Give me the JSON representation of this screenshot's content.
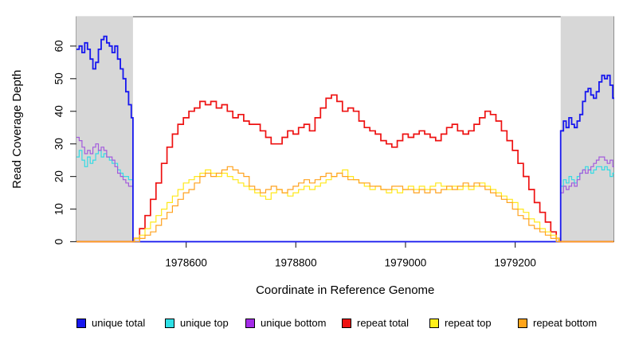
{
  "chart_data": {
    "type": "line",
    "title": "",
    "xlabel": "Coordinate in Reference Genome",
    "ylabel": "Read Coverage Depth",
    "xlim": [
      1978400,
      1979380
    ],
    "ylim": [
      0,
      69
    ],
    "grid": false,
    "legend_position": "bottom",
    "background": "#ffffff",
    "box_color": "#444444",
    "tick_color": "#333333",
    "x_ticks": {
      "values": [
        1978600,
        1978800,
        1979000,
        1979200
      ],
      "labels": [
        "1978600",
        "1978800",
        "1979000",
        "1979200"
      ]
    },
    "y_ticks": {
      "values": [
        0,
        10,
        20,
        30,
        40,
        50,
        60
      ],
      "labels": [
        "0",
        "10",
        "20",
        "30",
        "40",
        "50",
        "60"
      ]
    },
    "shaded_regions": [
      {
        "from": 1978400,
        "to": 1978503,
        "color": "#d7d7d7"
      },
      {
        "from": 1979283,
        "to": 1979380,
        "color": "#d7d7d7"
      }
    ],
    "series": [
      {
        "name": "unique top",
        "color": "#35dbe4",
        "line_width": 1.2,
        "segments": [
          {
            "start": 1978400,
            "step": 5,
            "values": [
              26,
              28,
              25,
              23,
              26,
              24,
              25,
              27,
              28,
              26,
              27,
              26,
              25,
              24,
              24,
              22,
              21,
              20,
              20,
              19,
              19
            ]
          },
          {
            "start": 1978503,
            "step": 780,
            "values": [
              0,
              0
            ]
          },
          {
            "start": 1979283,
            "step": 5,
            "values": [
              17,
              19,
              18,
              20,
              19,
              18,
              20,
              21,
              22,
              23,
              22,
              21,
              22,
              23,
              23,
              22,
              23,
              22,
              20,
              21,
              21
            ]
          }
        ]
      },
      {
        "name": "unique bottom",
        "color": "#a35bdd",
        "line_width": 1.2,
        "segments": [
          {
            "start": 1978400,
            "step": 5,
            "values": [
              32,
              31,
              29,
              27,
              28,
              27,
              29,
              30,
              28,
              29,
              28,
              26,
              26,
              25,
              23,
              21,
              20,
              19,
              18,
              17,
              17
            ]
          },
          {
            "start": 1978503,
            "step": 780,
            "values": [
              0,
              0
            ]
          },
          {
            "start": 1979283,
            "step": 5,
            "values": [
              15,
              17,
              16,
              17,
              18,
              17,
              19,
              21,
              22,
              21,
              22,
              23,
              24,
              25,
              26,
              26,
              25,
              24,
              25,
              23,
              22
            ]
          }
        ]
      },
      {
        "name": "unique total",
        "color": "#1717ef",
        "line_width": 1.8,
        "segments": [
          {
            "start": 1978400,
            "step": 5,
            "values": [
              59,
              60,
              58,
              61,
              59,
              56,
              53,
              55,
              59,
              62,
              63,
              61,
              60,
              58,
              60,
              56,
              53,
              50,
              46,
              42,
              38
            ]
          },
          {
            "start": 1978503,
            "step": 780,
            "values": [
              0,
              0
            ]
          },
          {
            "start": 1979283,
            "step": 5,
            "values": [
              34,
              37,
              35,
              38,
              36,
              35,
              37,
              39,
              43,
              46,
              47,
              45,
              44,
              46,
              49,
              51,
              50,
              51,
              48,
              44,
              40
            ]
          }
        ]
      },
      {
        "name": "repeat total",
        "color": "#ee1111",
        "line_width": 1.7,
        "segments": [
          {
            "start": 1978400,
            "step": 104,
            "values": [
              0,
              0
            ]
          },
          {
            "start": 1978505,
            "step": 10,
            "values": [
              1,
              4,
              8,
              13,
              18,
              24,
              29,
              33,
              36,
              38,
              40,
              41,
              43,
              42,
              43,
              41,
              42,
              40,
              38,
              39,
              37,
              36,
              36,
              34,
              32,
              30,
              30,
              32,
              34,
              33,
              35,
              36,
              34,
              38,
              41,
              44,
              45,
              43,
              40,
              41,
              40,
              37,
              35,
              34,
              33,
              31,
              30,
              29,
              31,
              33,
              32,
              33,
              34,
              33,
              32,
              31,
              33,
              35,
              36,
              34,
              33,
              34,
              36,
              38,
              40,
              39,
              37,
              34,
              31,
              28,
              24,
              20,
              16,
              12,
              9,
              6,
              3,
              1
            ]
          },
          {
            "start": 1979280,
            "step": 100,
            "values": [
              0,
              0
            ]
          }
        ]
      },
      {
        "name": "repeat top",
        "color": "#ffe81a",
        "line_width": 1.2,
        "segments": [
          {
            "start": 1978400,
            "step": 104,
            "values": [
              0,
              0
            ]
          },
          {
            "start": 1978505,
            "step": 10,
            "values": [
              1,
              2,
              4,
              6,
              8,
              10,
              12,
              14,
              16,
              18,
              19,
              20,
              21,
              22,
              21,
              20,
              21,
              20,
              19,
              18,
              17,
              16,
              15,
              14,
              13,
              15,
              16,
              15,
              14,
              15,
              16,
              17,
              16,
              17,
              18,
              19,
              20,
              21,
              22,
              20,
              19,
              18,
              17,
              16,
              17,
              16,
              15,
              16,
              15,
              16,
              17,
              16,
              17,
              16,
              17,
              18,
              17,
              16,
              17,
              16,
              17,
              16,
              17,
              18,
              17,
              16,
              15,
              14,
              13,
              12,
              10,
              9,
              7,
              6,
              4,
              3,
              2,
              1
            ]
          },
          {
            "start": 1979280,
            "step": 100,
            "values": [
              0,
              0
            ]
          }
        ]
      },
      {
        "name": "repeat bottom",
        "color": "#ffa21e",
        "line_width": 1.2,
        "segments": [
          {
            "start": 1978400,
            "step": 104,
            "values": [
              0,
              0
            ]
          },
          {
            "start": 1978505,
            "step": 10,
            "values": [
              0,
              1,
              2,
              3,
              5,
              7,
              9,
              11,
              13,
              15,
              16,
              18,
              20,
              21,
              20,
              21,
              22,
              23,
              22,
              21,
              20,
              17,
              16,
              15,
              16,
              17,
              16,
              15,
              16,
              17,
              18,
              19,
              18,
              19,
              20,
              21,
              20,
              21,
              20,
              19,
              19,
              18,
              18,
              17,
              17,
              16,
              16,
              17,
              17,
              16,
              16,
              15,
              16,
              15,
              16,
              15,
              16,
              17,
              16,
              17,
              18,
              17,
              18,
              17,
              16,
              15,
              14,
              13,
              12,
              10,
              8,
              7,
              5,
              4,
              3,
              2,
              1,
              0
            ]
          },
          {
            "start": 1979283,
            "step": 97,
            "values": [
              0,
              0
            ]
          }
        ]
      }
    ],
    "legend": {
      "items": [
        {
          "label": "unique total",
          "color": "#1717ef"
        },
        {
          "label": "unique top",
          "color": "#2fe0e6"
        },
        {
          "label": "unique bottom",
          "color": "#a42be8"
        },
        {
          "label": "repeat total",
          "color": "#ee1111"
        },
        {
          "label": "repeat top",
          "color": "#fff01a"
        },
        {
          "label": "repeat bottom",
          "color": "#ffa41a"
        }
      ]
    }
  }
}
